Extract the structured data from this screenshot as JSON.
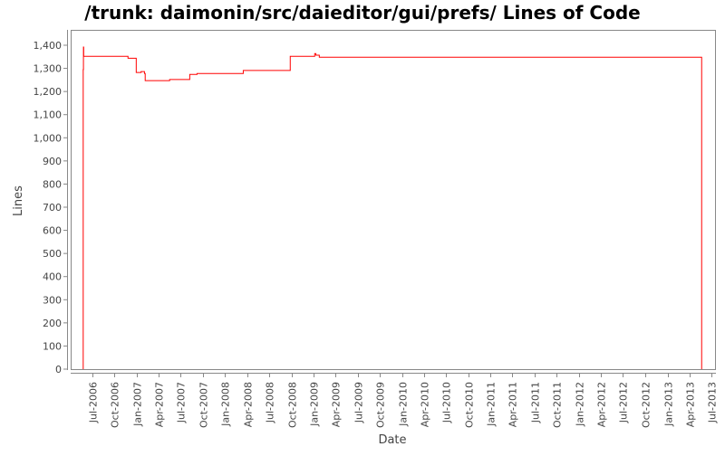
{
  "chart_data": {
    "type": "line",
    "title": "/trunk: daimonin/src/daieditor/gui/prefs/ Lines of Code",
    "xlabel": "Date",
    "ylabel": "Lines",
    "line_style": "step",
    "series_color": "#ff0000",
    "ylim": [
      0,
      1400
    ],
    "xlim": [
      "2006-05-12",
      "2013-07-28"
    ],
    "grid": false,
    "y_ticks": [
      "0",
      "100",
      "200",
      "300",
      "400",
      "500",
      "600",
      "700",
      "800",
      "900",
      "1,000",
      "1,100",
      "1,200",
      "1,300",
      "1,400"
    ],
    "y_tick_values": [
      0,
      100,
      200,
      300,
      400,
      500,
      600,
      700,
      800,
      900,
      1000,
      1100,
      1200,
      1300,
      1400
    ],
    "x_ticks": [
      "Jul-2006",
      "Oct-2006",
      "Jan-2007",
      "Apr-2007",
      "Jul-2007",
      "Oct-2007",
      "Jan-2008",
      "Apr-2008",
      "Jul-2008",
      "Oct-2008",
      "Jan-2009",
      "Apr-2009",
      "Jul-2009",
      "Oct-2009",
      "Jan-2010",
      "Apr-2010",
      "Jul-2010",
      "Oct-2010",
      "Jan-2011",
      "Apr-2011",
      "Jul-2011",
      "Oct-2011",
      "Jan-2012",
      "Apr-2012",
      "Jul-2012",
      "Oct-2012",
      "Jan-2013",
      "Apr-2013",
      "Jul-2013"
    ],
    "x_tick_dates": [
      "2006-07-01",
      "2006-10-01",
      "2007-01-01",
      "2007-04-01",
      "2007-07-01",
      "2007-10-01",
      "2008-01-01",
      "2008-04-01",
      "2008-07-01",
      "2008-10-01",
      "2009-01-01",
      "2009-04-01",
      "2009-07-01",
      "2009-10-01",
      "2010-01-01",
      "2010-04-01",
      "2010-07-01",
      "2010-10-01",
      "2011-01-01",
      "2011-04-01",
      "2011-07-01",
      "2011-10-01",
      "2012-01-01",
      "2012-04-01",
      "2012-07-01",
      "2012-10-01",
      "2013-01-01",
      "2013-04-01",
      "2013-07-01"
    ],
    "series": [
      {
        "points": [
          [
            "2006-05-25",
            0
          ],
          [
            "2006-05-25",
            1295
          ],
          [
            "2006-05-26",
            1392
          ],
          [
            "2006-05-27",
            1352
          ],
          [
            "2006-11-26",
            1344
          ],
          [
            "2006-12-30",
            1282
          ],
          [
            "2007-01-19",
            1286
          ],
          [
            "2007-02-02",
            1278
          ],
          [
            "2007-02-05",
            1247
          ],
          [
            "2007-05-17",
            1252
          ],
          [
            "2007-08-08",
            1274
          ],
          [
            "2007-09-07",
            1278
          ],
          [
            "2008-03-16",
            1291
          ],
          [
            "2008-09-26",
            1352
          ],
          [
            "2009-01-05",
            1364
          ],
          [
            "2009-01-10",
            1357
          ],
          [
            "2009-01-24",
            1348
          ],
          [
            "2013-05-22",
            0
          ]
        ]
      }
    ]
  }
}
